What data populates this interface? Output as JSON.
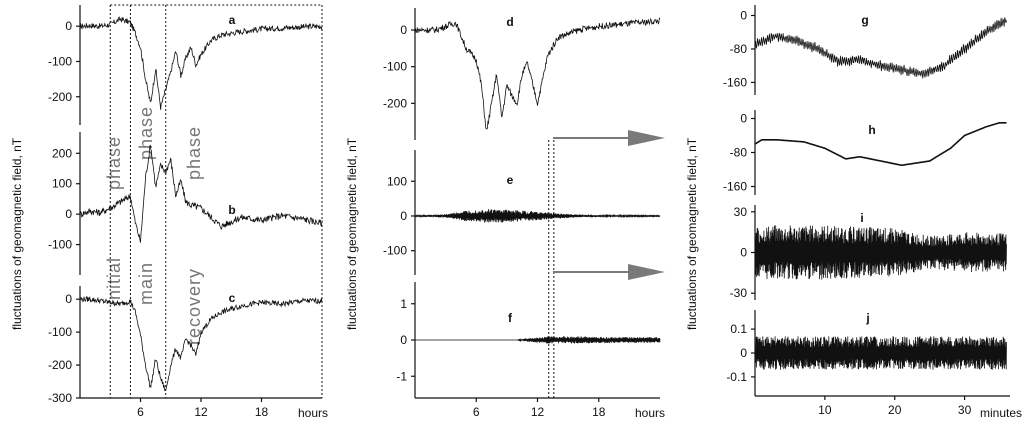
{
  "colors": {
    "trace": "#111111",
    "phase_text": "#777777",
    "arrow": "#7a7a7a"
  },
  "y_axis_label": "fluctuations of geomagnetic field, nT",
  "phases": {
    "initial": "initial",
    "main": "main",
    "recovery": "recovery",
    "phase": "phase"
  },
  "units": {
    "hours": "hours",
    "minutes": "minutes"
  },
  "chart_data": [
    {
      "type": "line",
      "label": "a",
      "xlabel": "hours",
      "ylabel": "fluctuations of geomagnetic field, nT",
      "xlim": [
        0,
        24
      ],
      "ylim": [
        -280,
        60
      ],
      "yticks": [
        0,
        -100,
        -200
      ],
      "ytick_labels": [
        "0",
        "-100",
        "-200"
      ],
      "x": [
        0,
        1,
        2,
        3,
        4,
        5,
        5.5,
        6,
        6.5,
        7,
        7.5,
        8,
        8.5,
        9,
        9.5,
        10,
        10.5,
        11,
        11.5,
        12,
        13,
        14,
        16,
        18,
        20,
        22,
        24
      ],
      "y": [
        0,
        2,
        0,
        5,
        20,
        10,
        -20,
        -60,
        -150,
        -220,
        -120,
        -230,
        -180,
        -130,
        -70,
        -140,
        -90,
        -60,
        -110,
        -80,
        -40,
        -25,
        -15,
        -8,
        -5,
        -2,
        0
      ]
    },
    {
      "type": "line",
      "label": "b",
      "xlabel": "hours",
      "xlim": [
        0,
        24
      ],
      "ylim": [
        -200,
        270
      ],
      "yticks": [
        200,
        100,
        0,
        -100
      ],
      "ytick_labels": [
        "200",
        "100",
        "0",
        "-100"
      ],
      "x": [
        0,
        1,
        2,
        3,
        4,
        5,
        5.5,
        6,
        6.5,
        7,
        7.5,
        8,
        8.5,
        9,
        9.5,
        10,
        10.5,
        11,
        12,
        13,
        14,
        16,
        18,
        20,
        22,
        24
      ],
      "y": [
        0,
        10,
        5,
        20,
        40,
        60,
        -30,
        -90,
        120,
        230,
        90,
        160,
        140,
        180,
        60,
        110,
        40,
        30,
        20,
        -10,
        -40,
        -10,
        -20,
        -5,
        -15,
        -30
      ]
    },
    {
      "type": "line",
      "label": "c",
      "xlabel": "hours",
      "xlim": [
        0,
        24
      ],
      "ylim": [
        -300,
        40
      ],
      "yticks": [
        0,
        -100,
        -200,
        -300
      ],
      "ytick_labels": [
        "0",
        "-100",
        "-200",
        "-300"
      ],
      "xticks": [
        6,
        12,
        18
      ],
      "xtick_labels": [
        "6",
        "12",
        "18"
      ],
      "x": [
        0,
        1,
        2,
        3,
        4,
        5,
        5.5,
        6,
        6.5,
        7,
        7.5,
        8,
        8.5,
        9,
        9.5,
        10,
        10.5,
        11,
        11.5,
        12,
        13,
        14,
        16,
        18,
        20,
        22,
        24
      ],
      "y": [
        0,
        0,
        -5,
        -10,
        -15,
        -5,
        -40,
        -110,
        -200,
        -270,
        -180,
        -240,
        -280,
        -200,
        -150,
        -180,
        -120,
        -140,
        -170,
        -100,
        -60,
        -40,
        -20,
        -10,
        -15,
        -5,
        -5
      ]
    },
    {
      "type": "line",
      "label": "d",
      "xlabel": "hours",
      "xlim": [
        0,
        24
      ],
      "ylim": [
        -300,
        60
      ],
      "yticks": [
        0,
        -100,
        -200
      ],
      "ytick_labels": [
        "0",
        "-100",
        "-200"
      ],
      "x": [
        0,
        2,
        3,
        4,
        5,
        6,
        6.5,
        7,
        7.5,
        8,
        8.5,
        9,
        9.5,
        10,
        10.5,
        11,
        12,
        13,
        14,
        16,
        18,
        20,
        22,
        24
      ],
      "y": [
        0,
        0,
        10,
        20,
        -50,
        -80,
        -150,
        -280,
        -200,
        -120,
        -240,
        -150,
        -180,
        -200,
        -120,
        -90,
        -200,
        -70,
        -20,
        0,
        10,
        15,
        20,
        25
      ]
    },
    {
      "type": "line",
      "label": "e",
      "xlabel": "hours",
      "xlim": [
        0,
        24
      ],
      "ylim": [
        -170,
        190
      ],
      "yticks": [
        100,
        0,
        -100
      ],
      "ytick_labels": [
        "100",
        "0",
        "-100"
      ],
      "envelope": {
        "x": [
          0,
          3,
          5,
          7,
          9,
          11,
          13,
          15,
          17,
          24
        ],
        "amplitude": [
          2,
          5,
          15,
          20,
          18,
          15,
          10,
          6,
          3,
          1
        ]
      }
    },
    {
      "type": "line",
      "label": "f",
      "xlabel": "hours",
      "xlim": [
        0,
        24
      ],
      "ylim": [
        -1.6,
        1.6
      ],
      "yticks": [
        1,
        0,
        -1
      ],
      "ytick_labels": [
        "1",
        "0",
        "-1"
      ],
      "xticks": [
        6,
        12,
        18
      ],
      "xtick_labels": [
        "6",
        "12",
        "18"
      ],
      "envelope": {
        "x": [
          0,
          10,
          11,
          13,
          16,
          20,
          24
        ],
        "amplitude": [
          0,
          0,
          0.05,
          0.1,
          0.1,
          0.08,
          0.08
        ]
      }
    },
    {
      "type": "line",
      "label": "g",
      "xlabel": "minutes",
      "xlim": [
        0,
        36.5
      ],
      "ylim": [
        -190,
        25
      ],
      "yticks": [
        0,
        -80,
        -160
      ],
      "ytick_labels": [
        "0",
        "-80",
        "-160"
      ],
      "x": [
        0,
        3,
        6,
        9,
        12,
        15,
        18,
        21,
        24,
        27,
        30,
        33,
        36
      ],
      "y": [
        -70,
        -50,
        -60,
        -80,
        -110,
        -105,
        -120,
        -130,
        -140,
        -120,
        -80,
        -40,
        -10
      ],
      "oscillation": 10
    },
    {
      "type": "line",
      "label": "h",
      "xlabel": "minutes",
      "xlim": [
        0,
        36.5
      ],
      "ylim": [
        -180,
        20
      ],
      "yticks": [
        0,
        -80,
        -160
      ],
      "ytick_labels": [
        "0",
        "-80",
        "-160"
      ],
      "x": [
        0,
        1,
        3,
        7,
        10,
        13,
        15,
        18,
        21,
        23,
        25,
        28,
        30,
        33,
        35,
        36
      ],
      "y": [
        -60,
        -50,
        -50,
        -55,
        -70,
        -95,
        -90,
        -100,
        -110,
        -105,
        -100,
        -70,
        -40,
        -20,
        -10,
        -10
      ]
    },
    {
      "type": "line",
      "label": "i",
      "xlabel": "minutes",
      "xlim": [
        0,
        36.5
      ],
      "ylim": [
        -35,
        35
      ],
      "yticks": [
        30,
        0,
        -30
      ],
      "ytick_labels": [
        "30",
        "0",
        "-30"
      ],
      "envelope": {
        "x": [
          0,
          10,
          20,
          25,
          30,
          36
        ],
        "amplitude": [
          20,
          20,
          18,
          12,
          15,
          14
        ]
      }
    },
    {
      "type": "line",
      "label": "j",
      "xlabel": "minutes",
      "xlim": [
        0,
        36.5
      ],
      "ylim": [
        -0.18,
        0.18
      ],
      "yticks": [
        0.1,
        0,
        -0.1
      ],
      "ytick_labels": [
        "0.1",
        "0",
        "-0.1"
      ],
      "xticks": [
        10,
        20,
        30
      ],
      "xtick_labels": [
        "10",
        "20",
        "30"
      ],
      "envelope": {
        "x": [
          0,
          36
        ],
        "amplitude": [
          0.07,
          0.07
        ]
      }
    }
  ]
}
